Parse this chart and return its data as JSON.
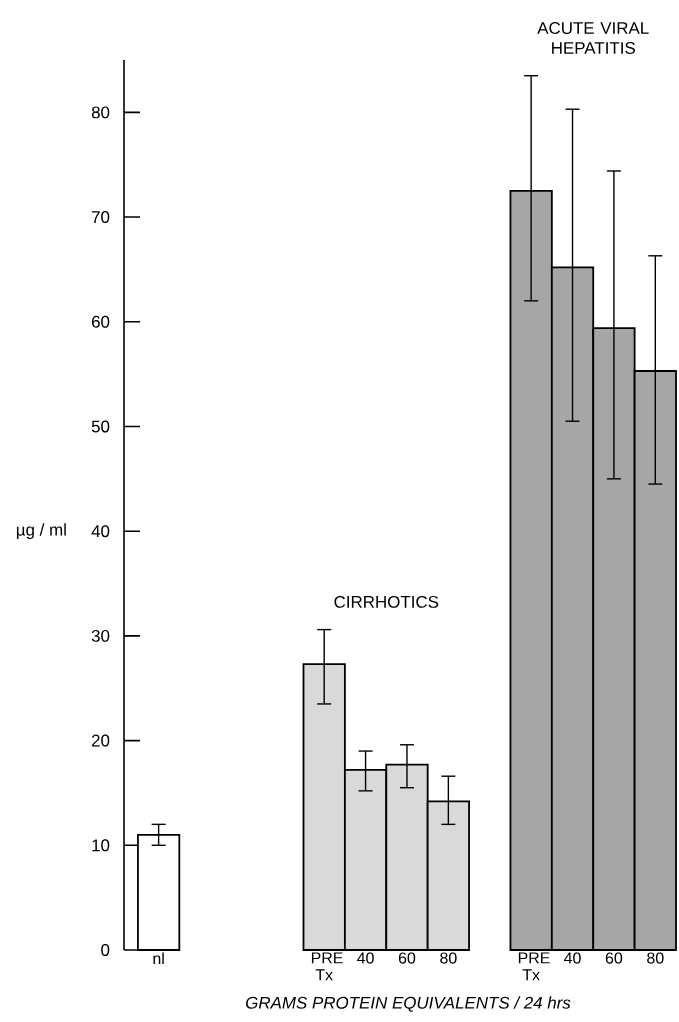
{
  "chart_data": {
    "type": "bar",
    "categories": [
      "nl",
      null,
      null,
      null,
      "PRE Tx",
      "40",
      "60",
      "80",
      null,
      "PRE Tx",
      "40",
      "60",
      "80"
    ],
    "values": [
      11,
      null,
      null,
      null,
      27.3,
      17.2,
      17.7,
      14.2,
      null,
      72.5,
      65.2,
      59.4,
      55.3
    ],
    "errors": [
      [
        10,
        12
      ],
      null,
      null,
      null,
      [
        23.5,
        30.6
      ],
      [
        15.2,
        19
      ],
      [
        15.5,
        19.6
      ],
      [
        12,
        16.6
      ],
      null,
      [
        62,
        83.5
      ],
      [
        50.5,
        80.3
      ],
      [
        45,
        74.4
      ],
      [
        44.5,
        66.3
      ]
    ],
    "colors": [
      "#ffffff",
      null,
      null,
      null,
      "#d9d9d9",
      "#d9d9d9",
      "#d9d9d9",
      "#d9d9d9",
      null,
      "#a6a6a6",
      "#a6a6a6",
      "#a6a6a6",
      "#a6a6a6"
    ],
    "ylim": [
      0,
      85
    ],
    "yticks": [
      0,
      10,
      20,
      30,
      40,
      50,
      60,
      70,
      80
    ],
    "ylabel": "µg / ml",
    "xlabel": "GRAMS PROTEIN EQUIVALENTS / 24 hrs",
    "annotations": [
      "CIRRHOTICS",
      "ACUTE VIRAL HEPATITIS"
    ]
  }
}
